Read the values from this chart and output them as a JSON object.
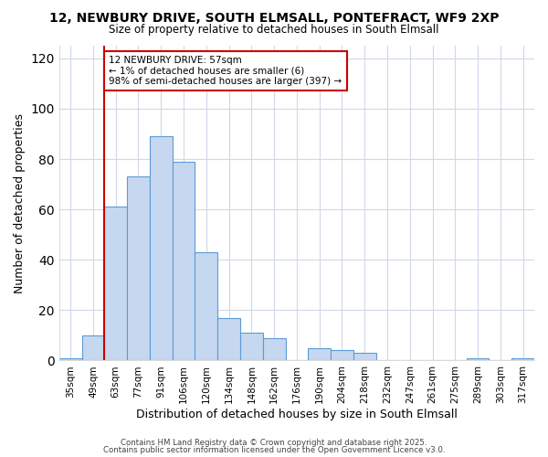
{
  "title1": "12, NEWBURY DRIVE, SOUTH ELMSALL, PONTEFRACT, WF9 2XP",
  "title2": "Size of property relative to detached houses in South Elmsall",
  "xlabel": "Distribution of detached houses by size in South Elmsall",
  "ylabel": "Number of detached properties",
  "bar_labels": [
    "35sqm",
    "49sqm",
    "63sqm",
    "77sqm",
    "91sqm",
    "106sqm",
    "120sqm",
    "134sqm",
    "148sqm",
    "162sqm",
    "176sqm",
    "190sqm",
    "204sqm",
    "218sqm",
    "232sqm",
    "247sqm",
    "261sqm",
    "275sqm",
    "289sqm",
    "303sqm",
    "317sqm"
  ],
  "bar_values": [
    1,
    10,
    61,
    73,
    89,
    79,
    43,
    17,
    11,
    9,
    0,
    5,
    4,
    3,
    0,
    0,
    0,
    0,
    1,
    0,
    1
  ],
  "bar_color": "#c5d8f0",
  "bar_edge_color": "#5b9bd5",
  "bar_linewidth": 0.8,
  "vline_x": 1.5,
  "vline_color": "#cc0000",
  "vline_linewidth": 1.5,
  "bg_color": "#ffffff",
  "plot_bg_color": "#ffffff",
  "grid_color": "#d0d8e8",
  "annotation_line1": "12 NEWBURY DRIVE: 57sqm",
  "annotation_line2": "← 1% of detached houses are smaller (6)",
  "annotation_line3": "98% of semi-detached houses are larger (397) →",
  "annotation_box_color": "#ffffff",
  "annotation_box_edge": "#cc0000",
  "ylim": [
    0,
    125
  ],
  "yticks": [
    0,
    20,
    40,
    60,
    80,
    100,
    120
  ],
  "footer1": "Contains HM Land Registry data © Crown copyright and database right 2025.",
  "footer2": "Contains public sector information licensed under the Open Government Licence v3.0."
}
